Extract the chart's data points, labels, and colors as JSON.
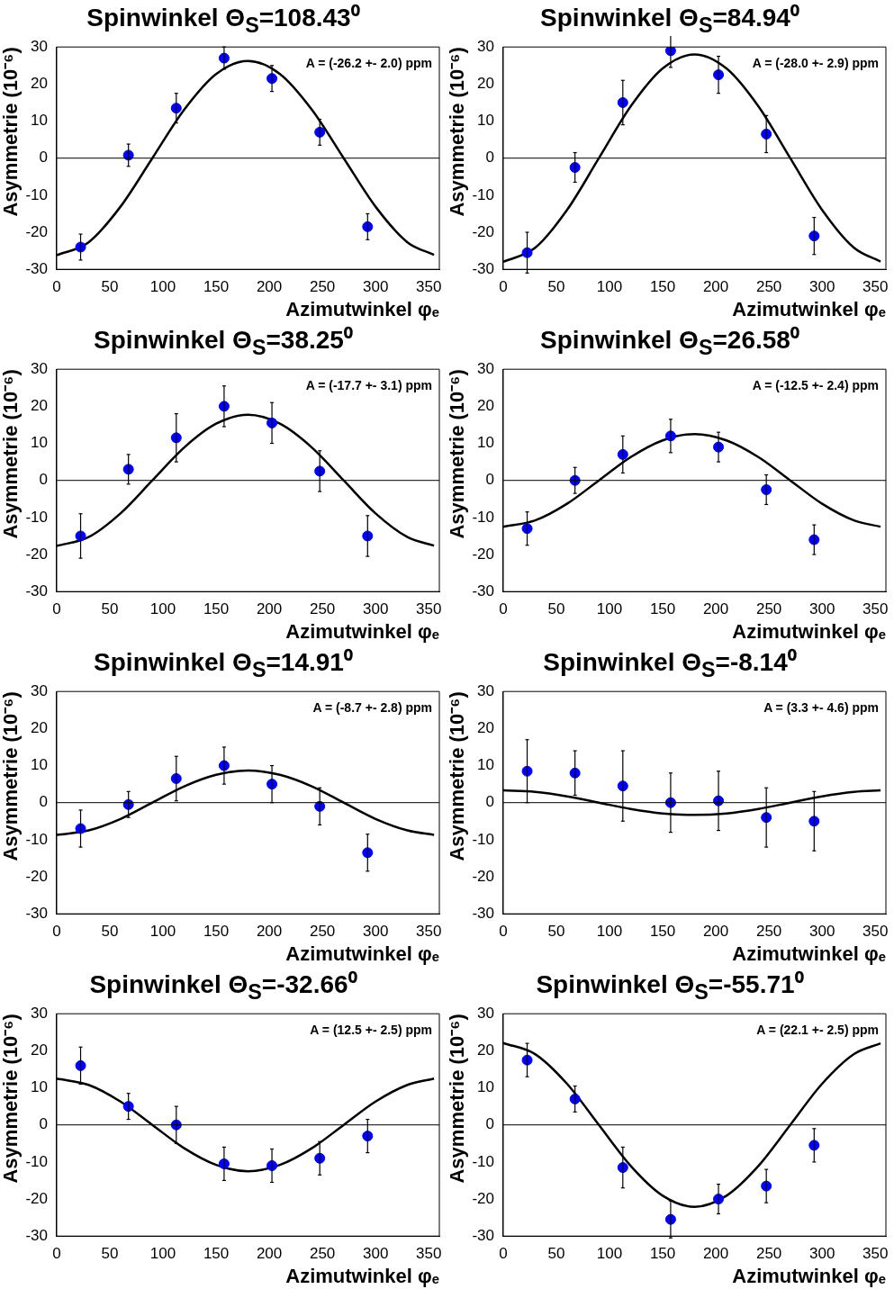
{
  "chart_data": [
    {
      "type": "scatter",
      "title": "Spinwinkel Θ$_{S}$=108.43⁰",
      "xlabel": "Azimutwinkel φₑ",
      "ylabel": "Asymmetrie (10⁻⁶)",
      "xlim": [
        0,
        360
      ],
      "xticks": [
        0,
        50,
        100,
        150,
        200,
        250,
        300,
        350
      ],
      "ylim": [
        -30,
        30
      ],
      "yticks": [
        -30,
        -20,
        -10,
        0,
        10,
        20,
        30
      ],
      "ref_lines": [
        {
          "axis": "y",
          "value": 0
        }
      ],
      "annotations": [
        "A = (-26.2 +- 2.0) ppm"
      ],
      "series": [
        {
          "marker": "circle",
          "color": "#0000ff",
          "x": [
            22.5,
            67.5,
            112.5,
            157.5,
            202.5,
            247.5,
            292.5
          ],
          "values": [
            -24,
            0.8,
            13.5,
            27,
            21.5,
            7,
            -18.5
          ],
          "errors": [
            3.5,
            3,
            4,
            3,
            3.5,
            3.5,
            3.5
          ]
        },
        {
          "type": "line",
          "color": "#000000",
          "x": [
            0,
            30,
            60,
            90,
            120,
            150,
            180,
            210,
            240,
            270,
            300,
            330,
            355
          ],
          "marker": "none",
          "values": [
            -26.2,
            -22.7,
            -13.1,
            0,
            13.1,
            22.7,
            26.2,
            22.7,
            13.1,
            0,
            -13.1,
            -22.7,
            -26.1
          ]
        }
      ]
    },
    {
      "type": "scatter",
      "title": "Spinwinkel Θ$_{S}$=84.94⁰",
      "xlabel": "Azimutwinkel φₑ",
      "ylabel": "Asymmetrie (10⁻⁶)",
      "xlim": [
        0,
        360
      ],
      "xticks": [
        0,
        50,
        100,
        150,
        200,
        250,
        300,
        350
      ],
      "ylim": [
        -30,
        30
      ],
      "yticks": [
        -30,
        -20,
        -10,
        0,
        10,
        20,
        30
      ],
      "ref_lines": [
        {
          "axis": "y",
          "value": 0
        }
      ],
      "annotations": [
        "A = (-28.0 +- 2.9) ppm"
      ],
      "series": [
        {
          "marker": "circle",
          "color": "#0000ff",
          "x": [
            22.5,
            67.5,
            112.5,
            157.5,
            202.5,
            247.5,
            292.5
          ],
          "values": [
            -25.5,
            -2.5,
            15,
            29,
            22.5,
            6.5,
            -21
          ],
          "errors": [
            5.5,
            4,
            6,
            4.5,
            5,
            5,
            5
          ]
        },
        {
          "type": "line",
          "color": "#000000",
          "x": [
            0,
            30,
            60,
            90,
            120,
            150,
            180,
            210,
            240,
            270,
            300,
            330,
            355
          ],
          "marker": "none",
          "values": [
            -28,
            -24.2,
            -14,
            0,
            14,
            24.2,
            28,
            24.2,
            14,
            0,
            -14,
            -24.2,
            -27.9
          ]
        }
      ]
    },
    {
      "type": "scatter",
      "title": "Spinwinkel Θ$_{S}$=38.25⁰",
      "xlabel": "Azimutwinkel φₑ",
      "ylabel": "Asymmetrie (10⁻⁶)",
      "xlim": [
        0,
        360
      ],
      "xticks": [
        0,
        50,
        100,
        150,
        200,
        250,
        300,
        350
      ],
      "ylim": [
        -30,
        30
      ],
      "yticks": [
        -30,
        -20,
        -10,
        0,
        10,
        20,
        30
      ],
      "ref_lines": [
        {
          "axis": "y",
          "value": 0
        }
      ],
      "annotations": [
        "A = (-17.7 +- 3.1) ppm"
      ],
      "series": [
        {
          "marker": "circle",
          "color": "#0000ff",
          "x": [
            22.5,
            67.5,
            112.5,
            157.5,
            202.5,
            247.5,
            292.5
          ],
          "values": [
            -15,
            3,
            11.5,
            20,
            15.5,
            2.5,
            -15
          ],
          "errors": [
            6,
            4,
            6.5,
            5.5,
            5.5,
            5.5,
            5.5
          ]
        },
        {
          "type": "line",
          "color": "#000000",
          "x": [
            0,
            30,
            60,
            90,
            120,
            150,
            180,
            210,
            240,
            270,
            300,
            330,
            355
          ],
          "marker": "none",
          "values": [
            -17.7,
            -15.3,
            -8.9,
            0,
            8.9,
            15.3,
            17.7,
            15.3,
            8.9,
            0,
            -8.9,
            -15.3,
            -17.6
          ]
        }
      ]
    },
    {
      "type": "scatter",
      "title": "Spinwinkel Θ$_{S}$=26.58⁰",
      "xlabel": "Azimutwinkel φₑ",
      "ylabel": "Asymmetrie (10⁻⁶)",
      "xlim": [
        0,
        360
      ],
      "xticks": [
        0,
        50,
        100,
        150,
        200,
        250,
        300,
        350
      ],
      "ylim": [
        -30,
        30
      ],
      "yticks": [
        -30,
        -20,
        -10,
        0,
        10,
        20,
        30
      ],
      "ref_lines": [
        {
          "axis": "y",
          "value": 0
        }
      ],
      "annotations": [
        "A = (-12.5 +- 2.4) ppm"
      ],
      "series": [
        {
          "marker": "circle",
          "color": "#0000ff",
          "x": [
            22.5,
            67.5,
            112.5,
            157.5,
            202.5,
            247.5,
            292.5
          ],
          "values": [
            -13,
            0,
            7,
            12,
            9,
            -2.5,
            -16
          ],
          "errors": [
            4.5,
            3.5,
            5,
            4.5,
            4,
            4,
            4
          ]
        },
        {
          "type": "line",
          "color": "#000000",
          "x": [
            0,
            30,
            60,
            90,
            120,
            150,
            180,
            210,
            240,
            270,
            300,
            330,
            355
          ],
          "marker": "none",
          "values": [
            -12.5,
            -10.8,
            -6.3,
            0,
            6.3,
            10.8,
            12.5,
            10.8,
            6.3,
            0,
            -6.3,
            -10.8,
            -12.5
          ]
        }
      ]
    },
    {
      "type": "scatter",
      "title": "Spinwinkel Θ$_{S}$=14.91⁰",
      "xlabel": "Azimutwinkel φₑ",
      "ylabel": "Asymmetrie (10⁻⁶)",
      "xlim": [
        0,
        360
      ],
      "xticks": [
        0,
        50,
        100,
        150,
        200,
        250,
        300,
        350
      ],
      "ylim": [
        -30,
        30
      ],
      "yticks": [
        -30,
        -20,
        -10,
        0,
        10,
        20,
        30
      ],
      "ref_lines": [
        {
          "axis": "y",
          "value": 0
        }
      ],
      "annotations": [
        "A = (-8.7 +- 2.8) ppm"
      ],
      "series": [
        {
          "marker": "circle",
          "color": "#0000ff",
          "x": [
            22.5,
            67.5,
            112.5,
            157.5,
            202.5,
            247.5,
            292.5
          ],
          "values": [
            -7,
            -0.5,
            6.5,
            10,
            5,
            -1,
            -13.5
          ],
          "errors": [
            5,
            3.5,
            6,
            5,
            5,
            5,
            5
          ]
        },
        {
          "type": "line",
          "color": "#000000",
          "x": [
            0,
            30,
            60,
            90,
            120,
            150,
            180,
            210,
            240,
            270,
            300,
            330,
            355
          ],
          "marker": "none",
          "values": [
            -8.7,
            -7.5,
            -4.4,
            0,
            4.4,
            7.5,
            8.7,
            7.5,
            4.4,
            0,
            -4.4,
            -7.5,
            -8.7
          ]
        }
      ]
    },
    {
      "type": "scatter",
      "title": "Spinwinkel Θ$_{S}$=-8.14⁰",
      "xlabel": "Azimutwinkel φₑ",
      "ylabel": "Asymmetrie (10⁻⁶)",
      "xlim": [
        0,
        360
      ],
      "xticks": [
        0,
        50,
        100,
        150,
        200,
        250,
        300,
        350
      ],
      "ylim": [
        -30,
        30
      ],
      "yticks": [
        -30,
        -20,
        -10,
        0,
        10,
        20,
        30
      ],
      "ref_lines": [
        {
          "axis": "y",
          "value": 0
        }
      ],
      "annotations": [
        "A = (3.3 +- 4.6) ppm"
      ],
      "series": [
        {
          "marker": "circle",
          "color": "#0000ff",
          "x": [
            22.5,
            67.5,
            112.5,
            157.5,
            202.5,
            247.5,
            292.5
          ],
          "values": [
            8.5,
            8,
            4.5,
            0,
            0.5,
            -4,
            -5
          ],
          "errors": [
            8.5,
            6,
            9.5,
            8,
            8,
            8,
            8
          ]
        },
        {
          "type": "line",
          "color": "#000000",
          "x": [
            0,
            30,
            60,
            90,
            120,
            150,
            180,
            210,
            240,
            270,
            300,
            330,
            355
          ],
          "marker": "none",
          "values": [
            3.3,
            2.9,
            1.7,
            0,
            -1.7,
            -2.9,
            -3.3,
            -2.9,
            -1.7,
            0,
            1.7,
            2.9,
            3.3
          ]
        }
      ]
    },
    {
      "type": "scatter",
      "title": "Spinwinkel Θ$_{S}$=-32.66⁰",
      "xlabel": "Azimutwinkel φₑ",
      "ylabel": "Asymmetrie (10⁻⁶)",
      "xlim": [
        0,
        360
      ],
      "xticks": [
        0,
        50,
        100,
        150,
        200,
        250,
        300,
        350
      ],
      "ylim": [
        -30,
        30
      ],
      "yticks": [
        -30,
        -20,
        -10,
        0,
        10,
        20,
        30
      ],
      "ref_lines": [
        {
          "axis": "y",
          "value": 0
        }
      ],
      "annotations": [
        "A = (12.5 +- 2.5) ppm"
      ],
      "series": [
        {
          "marker": "circle",
          "color": "#0000ff",
          "x": [
            22.5,
            67.5,
            112.5,
            157.5,
            202.5,
            247.5,
            292.5
          ],
          "values": [
            16,
            5,
            0,
            -10.5,
            -11,
            -9,
            -3
          ],
          "errors": [
            5,
            3.5,
            5,
            4.5,
            4.5,
            4.5,
            4.5
          ]
        },
        {
          "type": "line",
          "color": "#000000",
          "x": [
            0,
            30,
            60,
            90,
            120,
            150,
            180,
            210,
            240,
            270,
            300,
            330,
            355
          ],
          "marker": "none",
          "values": [
            12.5,
            10.8,
            6.3,
            0,
            -6.3,
            -10.8,
            -12.5,
            -10.8,
            -6.3,
            0,
            6.3,
            10.8,
            12.5
          ]
        }
      ]
    },
    {
      "type": "scatter",
      "title": "Spinwinkel Θ$_{S}$=-55.71⁰",
      "xlabel": "Azimutwinkel φₑ",
      "ylabel": "Asymmetrie (10⁻⁶)",
      "xlim": [
        0,
        360
      ],
      "xticks": [
        0,
        50,
        100,
        150,
        200,
        250,
        300,
        350
      ],
      "ylim": [
        -30,
        30
      ],
      "yticks": [
        -30,
        -20,
        -10,
        0,
        10,
        20,
        30
      ],
      "ref_lines": [
        {
          "axis": "y",
          "value": 0
        }
      ],
      "annotations": [
        "A = (22.1 +- 2.5) ppm"
      ],
      "series": [
        {
          "marker": "circle",
          "color": "#0000ff",
          "x": [
            22.5,
            67.5,
            112.5,
            157.5,
            202.5,
            247.5,
            292.5
          ],
          "values": [
            17.5,
            7,
            -11.5,
            -25.5,
            -20,
            -16.5,
            -5.5
          ],
          "errors": [
            4.5,
            3.5,
            5.5,
            5,
            4,
            4.5,
            4.5
          ]
        },
        {
          "type": "line",
          "color": "#000000",
          "x": [
            0,
            30,
            60,
            90,
            120,
            150,
            180,
            210,
            240,
            270,
            300,
            330,
            355
          ],
          "marker": "none",
          "values": [
            22.1,
            19.1,
            11.1,
            0,
            -11.1,
            -19.1,
            -22.1,
            -19.1,
            -11.1,
            0,
            11.1,
            19.1,
            22
          ]
        }
      ]
    }
  ]
}
